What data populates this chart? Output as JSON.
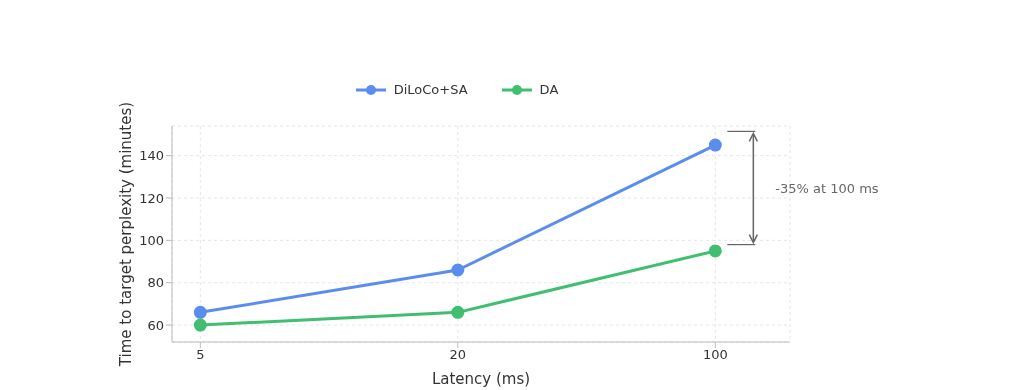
{
  "chart_data": {
    "type": "line",
    "xlabel": "Latency (ms)",
    "ylabel": "Time to target perplexity (minutes)",
    "categories": [
      "5",
      "20",
      "100"
    ],
    "series": [
      {
        "name": "DiLoCo+SA",
        "color": "#5b8def",
        "values": [
          66,
          86,
          145
        ]
      },
      {
        "name": "DA",
        "color": "#3fbf6f",
        "values": [
          60,
          66,
          95
        ]
      }
    ],
    "ylim": [
      52,
      154
    ],
    "yticks": [
      60,
      80,
      100,
      120,
      140
    ],
    "grid": true,
    "legend": "top",
    "marker": "circle",
    "line_style": "solid",
    "annotations": [
      "-35% at 100 ms"
    ]
  }
}
